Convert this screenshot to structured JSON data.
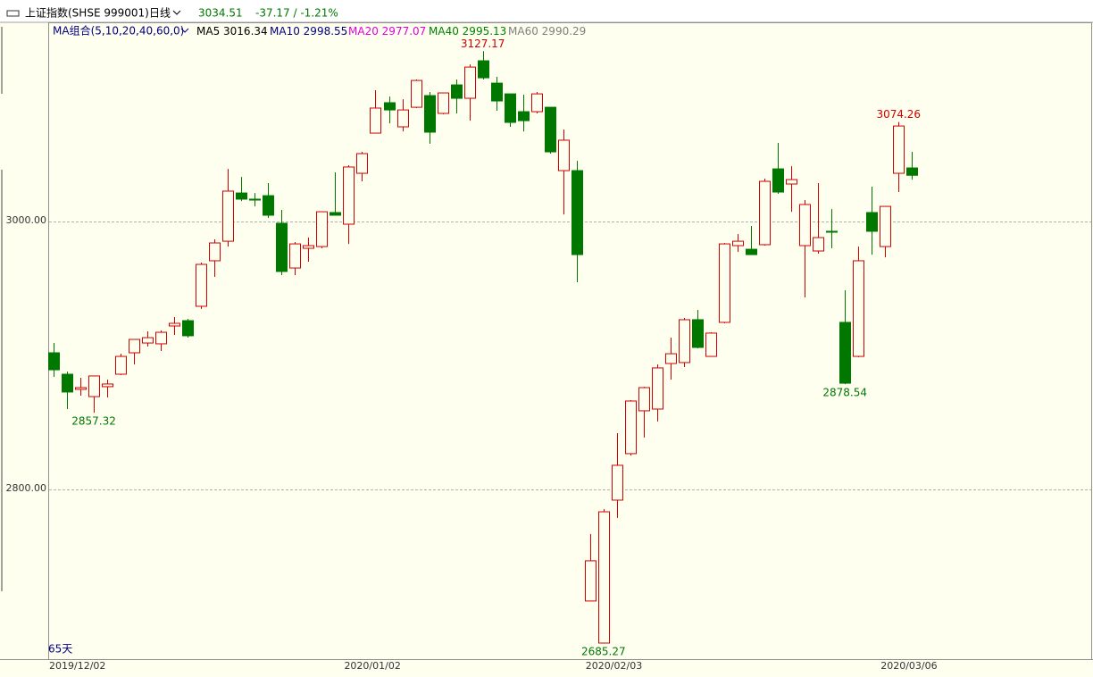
{
  "chart_data": {
    "type": "candlestick",
    "name": "上证指数(SHSE 999001)",
    "period": "日线",
    "last": 3034.51,
    "change": "-37.17 / -1.21%",
    "ma_title": "MA组合(5,10,20,40,60,0)",
    "ma": [
      {
        "name": "MA5",
        "value": 3016.34,
        "color": "#000000"
      },
      {
        "name": "MA10",
        "value": 2998.55,
        "color": "#000080"
      },
      {
        "name": "MA20",
        "value": 2977.07,
        "color": "#e000e0"
      },
      {
        "name": "MA40",
        "value": 2995.13,
        "color": "#008000"
      },
      {
        "name": "MA60",
        "value": 2990.29,
        "color": "#808080"
      }
    ],
    "days_label": "65天",
    "up_color": "#d00000",
    "down_color": "#007800",
    "categories": [
      "2019/12/02",
      null,
      null,
      null,
      null,
      null,
      null,
      null,
      null,
      null,
      null,
      null,
      null,
      null,
      null,
      null,
      null,
      null,
      null,
      null,
      null,
      null,
      "2020/01/02",
      null,
      null,
      null,
      null,
      null,
      null,
      null,
      null,
      null,
      null,
      null,
      null,
      null,
      null,
      null,
      null,
      null,
      "2020/02/03",
      null,
      null,
      null,
      null,
      null,
      null,
      null,
      null,
      null,
      null,
      null,
      null,
      null,
      null,
      null,
      null,
      null,
      null,
      null,
      null,
      null,
      "2020/03/06",
      null,
      null
    ],
    "open": [
      2902,
      2886,
      2874.7,
      2869.3,
      2876.7,
      2886,
      2902,
      2909.3,
      2908.7,
      2922,
      2926,
      2936.7,
      2970.7,
      2985.3,
      3021.3,
      3016.7,
      3019.3,
      2998.7,
      2965.3,
      2980,
      2981.3,
      3006.7,
      2998,
      3036,
      3066,
      3088.7,
      3070.7,
      3085.3,
      3094,
      3080.7,
      3102,
      3092,
      3120,
      3103.3,
      3095.3,
      3082,
      3082,
      3085.3,
      3038,
      3038,
      2716.7,
      2685.3,
      2792,
      2826.7,
      2858.7,
      2860,
      2894,
      2894.7,
      2926.7,
      2899.3,
      2924.7,
      2982,
      2979.3,
      2982.7,
      3039.3,
      3028,
      2982,
      2978,
      2992.7,
      2924.7,
      2899.3,
      3006.7,
      2981.3,
      3036,
      3040
    ],
    "high": [
      2909.3,
      2888,
      2883.3,
      2884.7,
      2882,
      2901.3,
      2912,
      2918,
      2918.7,
      2928.7,
      2927.3,
      2969.3,
      2986.7,
      3039.3,
      3033.3,
      3021.3,
      3028.7,
      3008.7,
      2984.7,
      2988,
      3007.3,
      3036.7,
      3042,
      3052,
      3098,
      3093.3,
      3091.3,
      3106,
      3096.7,
      3096,
      3106,
      3117.3,
      3127.17,
      3108,
      3095.3,
      3094.7,
      3096.7,
      3085.3,
      3068.7,
      3045.3,
      2766.7,
      2785.3,
      2842,
      2866.7,
      2876.7,
      2893.3,
      2913.3,
      2928,
      2934,
      2917.3,
      2984,
      2990.7,
      2996.7,
      3032,
      3058.7,
      3041.3,
      3016,
      3028.7,
      3009.3,
      2948.7,
      2981.3,
      3026,
      3011.3,
      3074.26,
      3052
    ],
    "low": [
      2884,
      2860,
      2870,
      2857.32,
      2868.7,
      2885.3,
      2893.3,
      2906.7,
      2903.3,
      2915.3,
      2913.3,
      2934.7,
      2958.7,
      2981.3,
      3015.3,
      3011.3,
      3002.7,
      2960,
      2960,
      2970,
      2980,
      3004.7,
      2983.3,
      3030,
      3066,
      3073.3,
      3067.3,
      3084.7,
      3058,
      3080,
      3080.7,
      3075.3,
      3106,
      3082.7,
      3070.7,
      3067.3,
      3080.7,
      3050.7,
      3005.3,
      2954.7,
      2716.7,
      2685.27,
      2778.7,
      2825.3,
      2838.7,
      2850.7,
      2882,
      2891.3,
      2905.3,
      2899.3,
      2924,
      2977.3,
      2975.3,
      2982,
      3020.7,
      3007.3,
      2943.3,
      2976,
      2980,
      2878.54,
      2898.7,
      2975.3,
      2973.3,
      3022,
      3031.3
    ],
    "close": [
      2889.3,
      2872.7,
      2876,
      2884.7,
      2878.7,
      2899.3,
      2912,
      2913.3,
      2917.3,
      2924,
      2914.7,
      2968,
      2984,
      3022.7,
      3016.7,
      3016,
      3004.7,
      2962.7,
      2983.3,
      2982,
      3007.3,
      3004.7,
      3040.7,
      3050.7,
      3084.7,
      3083.3,
      3083.3,
      3105.3,
      3066.7,
      3096,
      3092,
      3115.3,
      3107.3,
      3090,
      3074,
      3075.3,
      3095.3,
      3052,
      3060.7,
      2975.3,
      2746.7,
      2783.3,
      2818,
      2866,
      2876,
      2890.7,
      2901.3,
      2926.7,
      2906,
      2916.7,
      2983.3,
      2985.3,
      2975.3,
      3030,
      3022,
      3031.3,
      3012.7,
      2988,
      2992,
      2879.3,
      2970.7,
      2992.7,
      3011.3,
      3071.3,
      3034.51
    ],
    "ylim": [
      2673.3,
      3148.7
    ],
    "yticks": [
      {
        "value": 2800,
        "label": "2800.00"
      },
      {
        "value": 3000,
        "label": "3000.00"
      }
    ],
    "grid": true
  }
}
